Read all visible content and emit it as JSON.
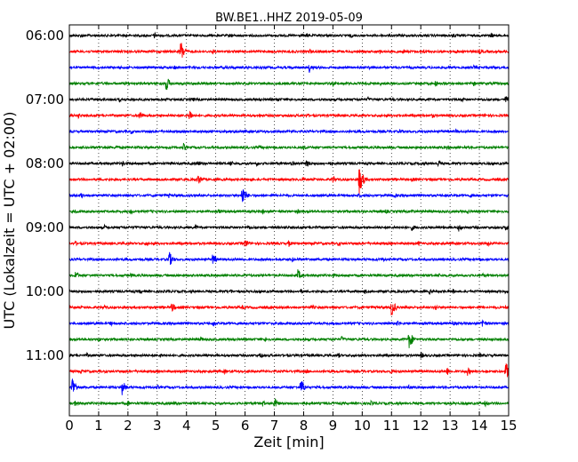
{
  "chart_data": {
    "type": "line",
    "title": "BW.BE1..HHZ 2019-05-09",
    "xlabel": "Zeit  [min]",
    "ylabel": "UTC (Lokalzeit = UTC + 02:00)",
    "xlim": [
      0,
      15
    ],
    "x_ticks": [
      "0",
      "1",
      "2",
      "3",
      "4",
      "5",
      "6",
      "7",
      "8",
      "9",
      "10",
      "11",
      "12",
      "13",
      "14",
      "15"
    ],
    "y_ticks": [
      "06:00",
      "07:00",
      "08:00",
      "09:00",
      "10:00",
      "11:00"
    ],
    "grid": "vertical dotted",
    "trace_colors": [
      "#000000",
      "#ff0000",
      "#0000ff",
      "#008000"
    ],
    "trace_start_utc": "06:00",
    "trace_minutes": 15,
    "traces": [
      {
        "start": "06:00",
        "events": [
          [
            0.4,
            3
          ],
          [
            2.9,
            4
          ],
          [
            5.5,
            3
          ],
          [
            8.1,
            3
          ],
          [
            9.6,
            3
          ],
          [
            13.1,
            3
          ],
          [
            14.4,
            3
          ]
        ]
      },
      {
        "start": "06:15",
        "events": [
          [
            3.8,
            14
          ],
          [
            4.9,
            3
          ],
          [
            8.2,
            3
          ],
          [
            10.6,
            3
          ],
          [
            11.4,
            3
          ],
          [
            12.1,
            3
          ],
          [
            13.2,
            3
          ],
          [
            14.0,
            3
          ]
        ]
      },
      {
        "start": "06:30",
        "events": [
          [
            3.6,
            3
          ],
          [
            5.4,
            3
          ],
          [
            8.2,
            6
          ],
          [
            10.2,
            3
          ],
          [
            13.8,
            3
          ]
        ]
      },
      {
        "start": "06:45",
        "events": [
          [
            3.3,
            10
          ],
          [
            9.0,
            3
          ],
          [
            10.6,
            3
          ],
          [
            12.5,
            4
          ],
          [
            13.8,
            3
          ]
        ]
      },
      {
        "start": "07:00",
        "events": [
          [
            1.7,
            3
          ],
          [
            4.2,
            3
          ],
          [
            7.1,
            3
          ],
          [
            10.2,
            3
          ],
          [
            13.4,
            3
          ],
          [
            14.9,
            5
          ]
        ]
      },
      {
        "start": "07:15",
        "events": [
          [
            0.3,
            4
          ],
          [
            2.4,
            6
          ],
          [
            4.1,
            7
          ],
          [
            6.5,
            3
          ],
          [
            8.1,
            3
          ],
          [
            11.2,
            3
          ],
          [
            12.4,
            3
          ],
          [
            14.2,
            3
          ]
        ]
      },
      {
        "start": "07:30",
        "events": [
          [
            2.1,
            3
          ],
          [
            5.6,
            3
          ],
          [
            7.6,
            3
          ],
          [
            11.3,
            3
          ],
          [
            13.2,
            3
          ]
        ]
      },
      {
        "start": "07:45",
        "events": [
          [
            1.6,
            3
          ],
          [
            3.9,
            5
          ],
          [
            6.5,
            3
          ],
          [
            8.0,
            3
          ],
          [
            12.9,
            3
          ],
          [
            13.5,
            3
          ]
        ]
      },
      {
        "start": "08:00",
        "events": [
          [
            1.8,
            4
          ],
          [
            4.4,
            3
          ],
          [
            5.5,
            4
          ],
          [
            6.4,
            3
          ],
          [
            7.6,
            4
          ],
          [
            8.1,
            5
          ],
          [
            8.9,
            3
          ],
          [
            12.0,
            3
          ],
          [
            12.6,
            4
          ]
        ]
      },
      {
        "start": "08:15",
        "events": [
          [
            4.4,
            7
          ],
          [
            6.2,
            3
          ],
          [
            8.0,
            3
          ],
          [
            9.0,
            5
          ],
          [
            9.9,
            18
          ],
          [
            11.7,
            3
          ]
        ]
      },
      {
        "start": "08:30",
        "events": [
          [
            0.4,
            4
          ],
          [
            3.4,
            3
          ],
          [
            5.9,
            13
          ],
          [
            9.9,
            3
          ],
          [
            11.1,
            3
          ],
          [
            13.7,
            3
          ]
        ]
      },
      {
        "start": "08:45",
        "events": [
          [
            0.2,
            3
          ],
          [
            2.1,
            3
          ],
          [
            5.1,
            3
          ],
          [
            6.6,
            3
          ],
          [
            7.8,
            3
          ],
          [
            10.8,
            3
          ],
          [
            11.7,
            3
          ],
          [
            13.6,
            3
          ]
        ]
      },
      {
        "start": "09:00",
        "events": [
          [
            1.2,
            3
          ],
          [
            4.3,
            3
          ],
          [
            6.1,
            3
          ],
          [
            8.4,
            3
          ],
          [
            11.7,
            4
          ],
          [
            13.3,
            5
          ],
          [
            14.9,
            4
          ]
        ]
      },
      {
        "start": "09:15",
        "events": [
          [
            0.2,
            3
          ],
          [
            2.6,
            3
          ],
          [
            6.0,
            6
          ],
          [
            7.5,
            4
          ],
          [
            9.2,
            3
          ],
          [
            11.9,
            3
          ],
          [
            14.3,
            4
          ]
        ]
      },
      {
        "start": "09:30",
        "events": [
          [
            3.4,
            10
          ],
          [
            4.9,
            7
          ],
          [
            7.6,
            3
          ],
          [
            10.7,
            3
          ],
          [
            14.0,
            3
          ]
        ]
      },
      {
        "start": "09:45",
        "events": [
          [
            0.2,
            6
          ],
          [
            2.1,
            3
          ],
          [
            6.0,
            3
          ],
          [
            7.8,
            7
          ],
          [
            9.0,
            3
          ],
          [
            12.6,
            3
          ],
          [
            14.1,
            3
          ]
        ]
      },
      {
        "start": "10:00",
        "events": [
          [
            2.4,
            3
          ],
          [
            5.5,
            3
          ],
          [
            7.9,
            3
          ],
          [
            10.1,
            3
          ],
          [
            12.3,
            3
          ],
          [
            13.1,
            3
          ],
          [
            14.9,
            3
          ]
        ]
      },
      {
        "start": "10:15",
        "events": [
          [
            1.2,
            3
          ],
          [
            3.5,
            6
          ],
          [
            5.9,
            3
          ],
          [
            8.3,
            3
          ],
          [
            11.0,
            11
          ],
          [
            12.5,
            4
          ],
          [
            14.9,
            3
          ]
        ]
      },
      {
        "start": "10:30",
        "events": [
          [
            1.4,
            3
          ],
          [
            4.9,
            4
          ],
          [
            7.9,
            3
          ],
          [
            11.2,
            4
          ],
          [
            13.1,
            3
          ],
          [
            14.1,
            6
          ]
        ]
      },
      {
        "start": "10:45",
        "events": [
          [
            1.0,
            3
          ],
          [
            4.5,
            3
          ],
          [
            6.7,
            3
          ],
          [
            9.3,
            4
          ],
          [
            11.6,
            12
          ],
          [
            14.4,
            3
          ]
        ]
      },
      {
        "start": "11:00",
        "events": [
          [
            0.6,
            3
          ],
          [
            3.1,
            3
          ],
          [
            6.5,
            4
          ],
          [
            9.2,
            3
          ],
          [
            12.0,
            4
          ],
          [
            14.0,
            3
          ]
        ]
      },
      {
        "start": "11:15",
        "events": [
          [
            0.4,
            3
          ],
          [
            5.3,
            3
          ],
          [
            8.1,
            3
          ],
          [
            11.0,
            3
          ],
          [
            12.9,
            5
          ],
          [
            13.6,
            5
          ],
          [
            14.9,
            12
          ]
        ]
      },
      {
        "start": "11:30",
        "events": [
          [
            0.1,
            14
          ],
          [
            1.8,
            9
          ],
          [
            3.0,
            3
          ],
          [
            7.9,
            11
          ],
          [
            11.6,
            3
          ]
        ]
      },
      {
        "start": "11:45",
        "events": [
          [
            0.2,
            4
          ],
          [
            2.0,
            3
          ],
          [
            3.6,
            3
          ],
          [
            6.6,
            4
          ],
          [
            7.0,
            7
          ],
          [
            10.3,
            3
          ],
          [
            14.2,
            4
          ]
        ]
      }
    ]
  }
}
